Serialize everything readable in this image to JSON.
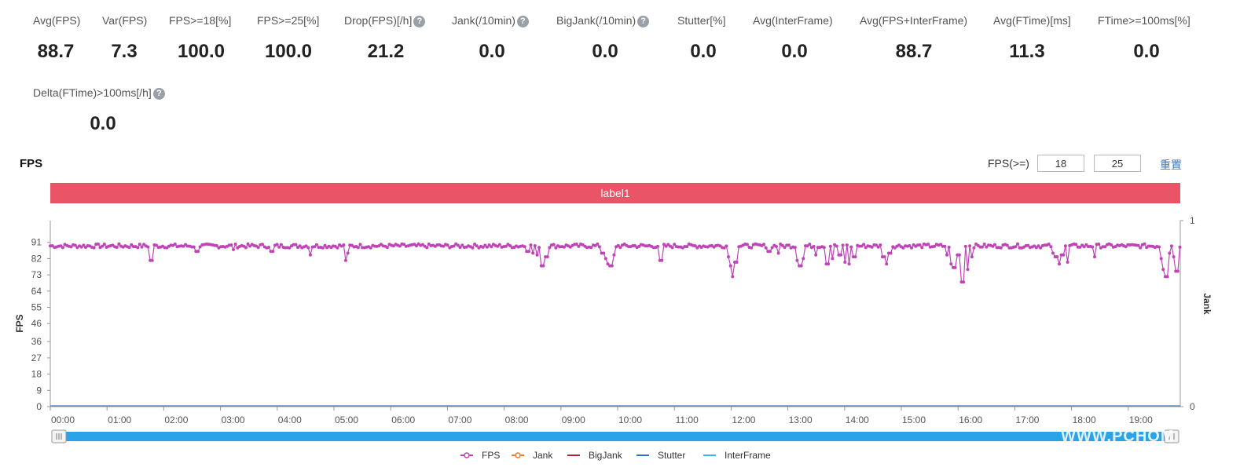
{
  "stats": [
    {
      "label": "Avg(FPS)",
      "value": "88.7",
      "help": false
    },
    {
      "label": "Var(FPS)",
      "value": "7.3",
      "help": false
    },
    {
      "label": "FPS>=18[%]",
      "value": "100.0",
      "help": false
    },
    {
      "label": "FPS>=25[%]",
      "value": "100.0",
      "help": false
    },
    {
      "label": "Drop(FPS)[/h]",
      "value": "21.2",
      "help": true
    },
    {
      "label": "Jank(/10min)",
      "value": "0.0",
      "help": true
    },
    {
      "label": "BigJank(/10min)",
      "value": "0.0",
      "help": true
    },
    {
      "label": "Stutter[%]",
      "value": "0.0",
      "help": false
    },
    {
      "label": "Avg(InterFrame)",
      "value": "0.0",
      "help": false
    },
    {
      "label": "Avg(FPS+InterFrame)",
      "value": "88.7",
      "help": false
    },
    {
      "label": "Avg(FTime)[ms]",
      "value": "11.3",
      "help": false
    },
    {
      "label": "FTime>=100ms[%]",
      "value": "0.0",
      "help": false
    },
    {
      "label": "Delta(FTime)>100ms[/h]",
      "value": "0.0",
      "help": true
    }
  ],
  "help_glyph": "?",
  "fps_section": {
    "title": "FPS",
    "filter_label": "FPS(>=)",
    "threshold_1": "18",
    "threshold_2": "25",
    "reset_label": "重置"
  },
  "label_bar": {
    "text": "label1",
    "color": "#e95467"
  },
  "watermark": "WWW.PCHOM",
  "chart_data": {
    "type": "line",
    "ylabel": "FPS",
    "y2label": "Jank",
    "y_ticks": [
      0,
      9,
      18,
      27,
      36,
      46,
      55,
      64,
      73,
      82,
      91
    ],
    "ylim": [
      0,
      100
    ],
    "y2_ticks": [
      0,
      1
    ],
    "xlim_minutes": [
      0,
      1195
    ],
    "x_ticks": [
      "00:00",
      "01:00",
      "02:00",
      "03:00",
      "04:00",
      "05:00",
      "06:00",
      "07:00",
      "08:00",
      "09:00",
      "10:00",
      "11:00",
      "12:00",
      "13:00",
      "14:00",
      "15:00",
      "16:00",
      "17:00",
      "18:00",
      "19:00"
    ],
    "legend": [
      {
        "name": "FPS",
        "color": "#c044b8"
      },
      {
        "name": "Jank",
        "color": "#f07a2e"
      },
      {
        "name": "BigJank",
        "color": "#b32438"
      },
      {
        "name": "Stutter",
        "color": "#2f6fd1"
      },
      {
        "name": "InterFrame",
        "color": "#3bb6ea"
      }
    ],
    "series": [
      {
        "name": "FPS",
        "baseline": 89,
        "dips": [
          {
            "x": 107,
            "y": 81
          },
          {
            "x": 155,
            "y": 86
          },
          {
            "x": 194,
            "y": 87
          },
          {
            "x": 233,
            "y": 85
          },
          {
            "x": 234,
            "y": 86
          },
          {
            "x": 275,
            "y": 84
          },
          {
            "x": 312,
            "y": 81
          },
          {
            "x": 314,
            "y": 85
          },
          {
            "x": 505,
            "y": 86
          },
          {
            "x": 510,
            "y": 85
          },
          {
            "x": 515,
            "y": 84
          },
          {
            "x": 520,
            "y": 78
          },
          {
            "x": 525,
            "y": 83
          },
          {
            "x": 584,
            "y": 85
          },
          {
            "x": 588,
            "y": 82
          },
          {
            "x": 591,
            "y": 79
          },
          {
            "x": 593,
            "y": 78
          },
          {
            "x": 596,
            "y": 84
          },
          {
            "x": 646,
            "y": 81
          },
          {
            "x": 717,
            "y": 83
          },
          {
            "x": 719,
            "y": 78
          },
          {
            "x": 721,
            "y": 74
          },
          {
            "x": 723,
            "y": 72
          },
          {
            "x": 725,
            "y": 80
          },
          {
            "x": 760,
            "y": 86
          },
          {
            "x": 770,
            "y": 85
          },
          {
            "x": 790,
            "y": 81
          },
          {
            "x": 793,
            "y": 78
          },
          {
            "x": 796,
            "y": 82
          },
          {
            "x": 810,
            "y": 84
          },
          {
            "x": 822,
            "y": 79
          },
          {
            "x": 827,
            "y": 82
          },
          {
            "x": 835,
            "y": 84
          },
          {
            "x": 840,
            "y": 80
          },
          {
            "x": 845,
            "y": 79
          },
          {
            "x": 850,
            "y": 83
          },
          {
            "x": 881,
            "y": 83
          },
          {
            "x": 885,
            "y": 79
          },
          {
            "x": 888,
            "y": 85
          },
          {
            "x": 948,
            "y": 84
          },
          {
            "x": 953,
            "y": 79
          },
          {
            "x": 956,
            "y": 77
          },
          {
            "x": 960,
            "y": 84
          },
          {
            "x": 965,
            "y": 69
          },
          {
            "x": 970,
            "y": 76
          },
          {
            "x": 975,
            "y": 83
          },
          {
            "x": 1061,
            "y": 85
          },
          {
            "x": 1064,
            "y": 83
          },
          {
            "x": 1067,
            "y": 79
          },
          {
            "x": 1070,
            "y": 84
          },
          {
            "x": 1076,
            "y": 80
          },
          {
            "x": 1105,
            "y": 83
          },
          {
            "x": 1175,
            "y": 82
          },
          {
            "x": 1178,
            "y": 76
          },
          {
            "x": 1180,
            "y": 72
          },
          {
            "x": 1183,
            "y": 85
          },
          {
            "x": 1189,
            "y": 83
          },
          {
            "x": 1191,
            "y": 75
          }
        ]
      },
      {
        "name": "Jank",
        "y": 0
      },
      {
        "name": "BigJank",
        "y": 0
      },
      {
        "name": "Stutter",
        "y": 0
      },
      {
        "name": "InterFrame",
        "y": 0
      }
    ],
    "grid": false,
    "slider": {
      "range": [
        0,
        1
      ]
    }
  }
}
